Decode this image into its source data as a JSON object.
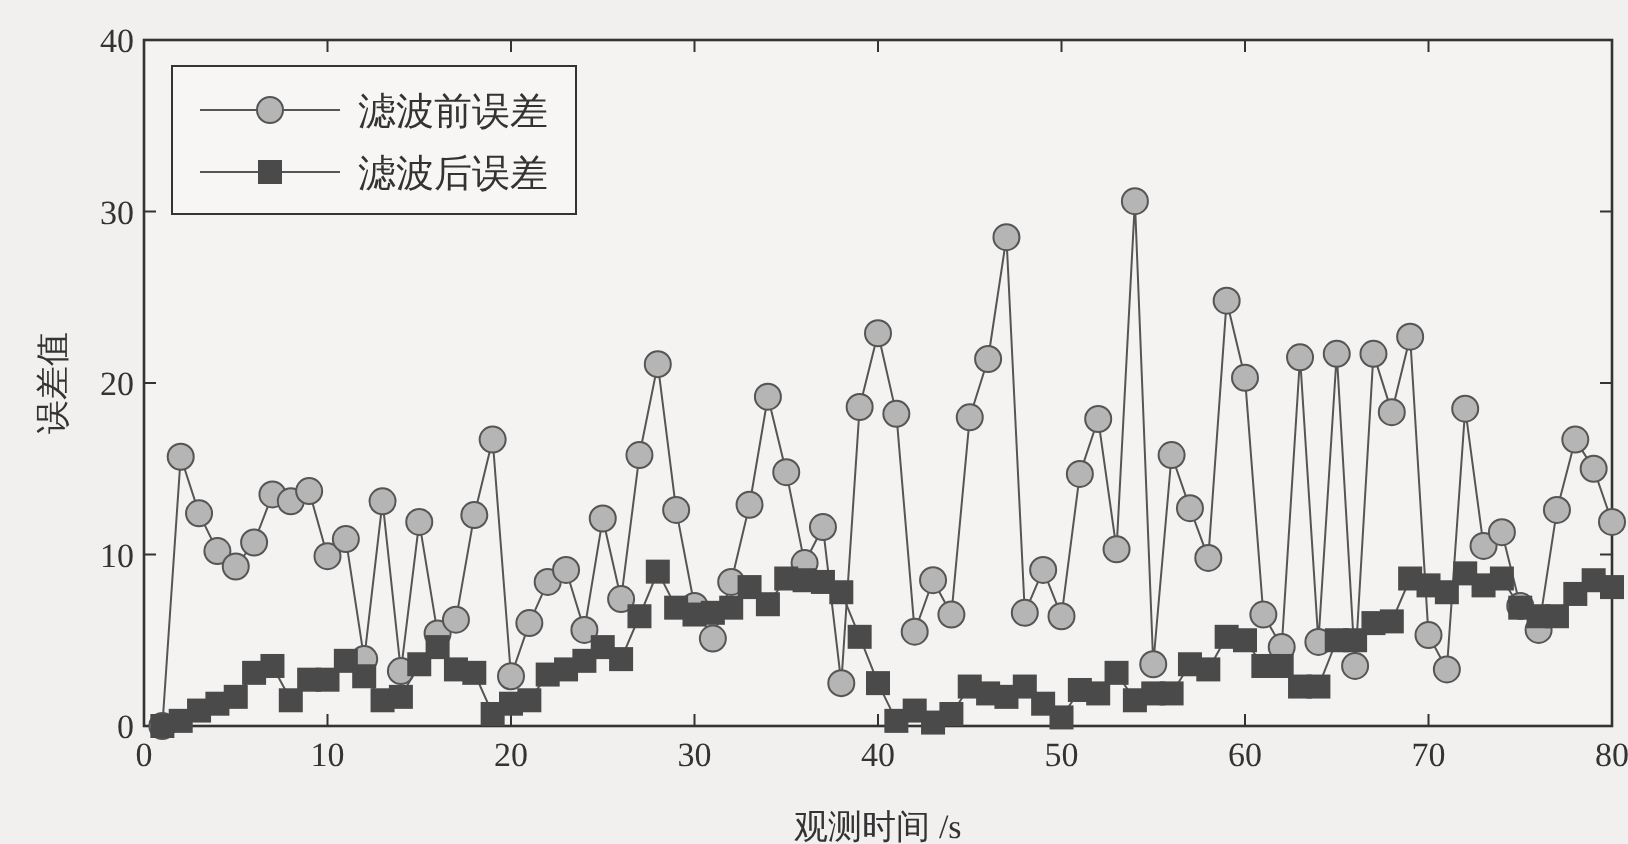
{
  "chart_data": {
    "type": "line",
    "xlabel": "观测时间 /s",
    "ylabel": "误差值",
    "legend": "top left",
    "x": [
      1,
      2,
      3,
      4,
      5,
      6,
      7,
      8,
      9,
      10,
      11,
      12,
      13,
      14,
      15,
      16,
      17,
      18,
      19,
      20,
      21,
      22,
      23,
      24,
      25,
      26,
      27,
      28,
      29,
      30,
      31,
      32,
      33,
      34,
      35,
      36,
      37,
      38,
      39,
      40,
      41,
      42,
      43,
      44,
      45,
      46,
      47,
      48,
      49,
      50,
      51,
      52,
      53,
      54,
      55,
      56,
      57,
      58,
      59,
      60,
      61,
      62,
      63,
      64,
      65,
      66,
      67,
      68,
      69,
      70,
      71,
      72,
      73,
      74,
      75,
      76,
      77,
      78,
      79,
      80
    ],
    "xlim": [
      0,
      80
    ],
    "xticks": [
      0,
      10,
      20,
      30,
      40,
      50,
      60,
      70,
      80
    ],
    "ylim": [
      0,
      40
    ],
    "yticks": [
      0,
      10,
      20,
      30,
      40
    ],
    "series": [
      {
        "name": "滤波前误差",
        "color": "#b5b5b5",
        "marker": "circle",
        "values": [
          0,
          15.7,
          12.4,
          10.2,
          9.3,
          10.7,
          13.5,
          13.1,
          13.7,
          9.9,
          10.9,
          3.9,
          13.1,
          3.2,
          11.9,
          5.4,
          6.2,
          12.3,
          16.7,
          2.9,
          6.0,
          8.4,
          9.1,
          5.6,
          12.1,
          7.4,
          15.8,
          21.1,
          12.6,
          7.0,
          5.1,
          8.4,
          12.9,
          19.2,
          14.8,
          9.5,
          11.6,
          2.5,
          18.6,
          22.9,
          18.2,
          5.5,
          8.5,
          6.5,
          18.0,
          21.4,
          28.5,
          6.6,
          9.1,
          6.4,
          14.7,
          17.9,
          10.3,
          30.6,
          3.6,
          15.8,
          12.7,
          9.8,
          24.8,
          20.3,
          6.5,
          4.6,
          21.5,
          4.9,
          21.7,
          3.5,
          21.7,
          18.3,
          22.7,
          5.3,
          3.3,
          18.5,
          10.5,
          11.3,
          7.0,
          5.6,
          12.6,
          16.7,
          15.0,
          11.9
        ]
      },
      {
        "name": "滤波后误差",
        "color": "#4a4a4a",
        "marker": "square",
        "values": [
          0,
          0.3,
          0.9,
          1.3,
          1.7,
          3.1,
          3.5,
          1.5,
          2.7,
          2.7,
          3.8,
          2.9,
          1.5,
          1.7,
          3.6,
          4.6,
          3.3,
          3.1,
          0.7,
          1.3,
          1.5,
          3.0,
          3.3,
          3.8,
          4.6,
          3.9,
          6.4,
          9.0,
          6.9,
          6.5,
          6.6,
          6.9,
          8.1,
          7.1,
          8.6,
          8.5,
          8.4,
          7.8,
          5.2,
          2.5,
          0.3,
          0.9,
          0.2,
          0.7,
          2.3,
          1.9,
          1.7,
          2.3,
          1.3,
          0.5,
          2.1,
          1.9,
          3.1,
          1.5,
          1.9,
          1.9,
          3.6,
          3.3,
          5.2,
          5.0,
          3.5,
          3.5,
          2.3,
          2.3,
          5.0,
          5.0,
          6.0,
          6.1,
          8.6,
          8.2,
          7.8,
          8.9,
          8.2,
          8.6,
          6.9,
          6.4,
          6.4,
          7.7,
          8.5,
          8.1
        ]
      }
    ]
  }
}
